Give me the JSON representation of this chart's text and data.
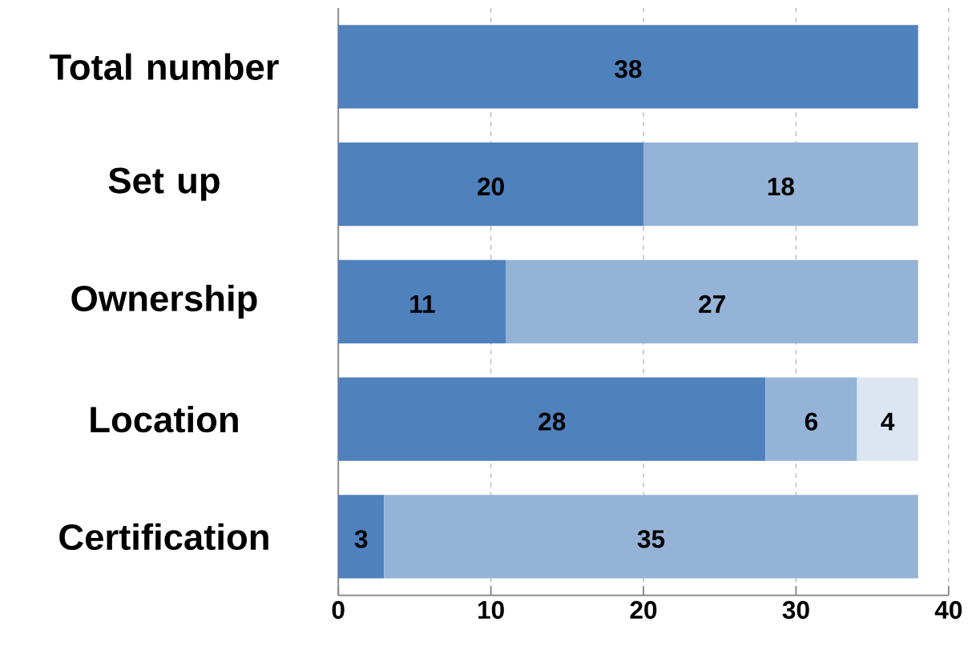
{
  "chart_data": {
    "type": "bar",
    "orientation": "horizontal",
    "stacked": true,
    "categories": [
      "Total number",
      "Set up",
      "Ownership",
      "Location",
      "Certification"
    ],
    "series": [
      {
        "color": "#4f81bd",
        "values": [
          38,
          20,
          11,
          28,
          3
        ]
      },
      {
        "color": "#95b3d7",
        "values": [
          null,
          18,
          27,
          6,
          35
        ]
      },
      {
        "color": "#dce6f2",
        "values": [
          null,
          null,
          null,
          4,
          null
        ]
      }
    ],
    "xlim": [
      0,
      40
    ],
    "xticks": [
      0,
      10,
      20,
      30,
      40
    ],
    "grid": "x",
    "data_labels": true
  }
}
